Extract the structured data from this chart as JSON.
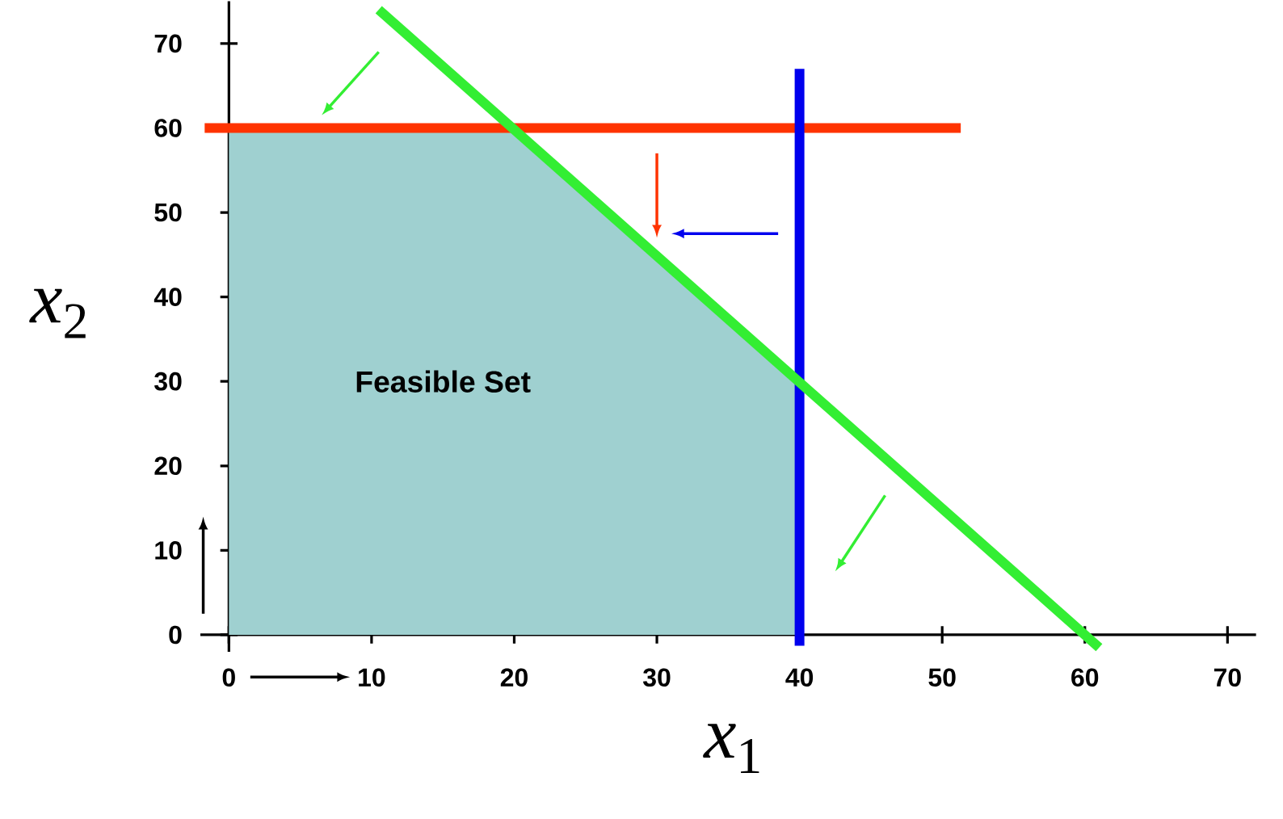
{
  "chart_data": {
    "type": "line",
    "xlabel": "*x*$_{1}$",
    "ylabel": "*x*$_{2}$",
    "xlim": [
      -2,
      72
    ],
    "ylim": [
      -2,
      75
    ],
    "xticks": [
      0,
      10,
      20,
      30,
      40,
      50,
      60,
      70
    ],
    "yticks": [
      0,
      10,
      20,
      30,
      40,
      50,
      60,
      70
    ],
    "grid": false,
    "marker": "none",
    "annotations": [
      "Feasible Set"
    ],
    "series": [
      {
        "type": "area",
        "color": "#9fd0d0",
        "x": [
          0,
          0,
          20,
          40,
          40
        ],
        "values": [
          0,
          60,
          60,
          30,
          0
        ]
      },
      {
        "color": "#ff3300",
        "x": [
          -1.7,
          51.3
        ],
        "values": [
          60,
          60
        ]
      },
      {
        "color": "#0000ee",
        "x": [
          40,
          40
        ],
        "values": [
          -1.3,
          67
        ]
      },
      {
        "color": "#33ee33",
        "x": [
          10.5,
          61
        ],
        "values": [
          74,
          -1.5
        ]
      }
    ]
  }
}
